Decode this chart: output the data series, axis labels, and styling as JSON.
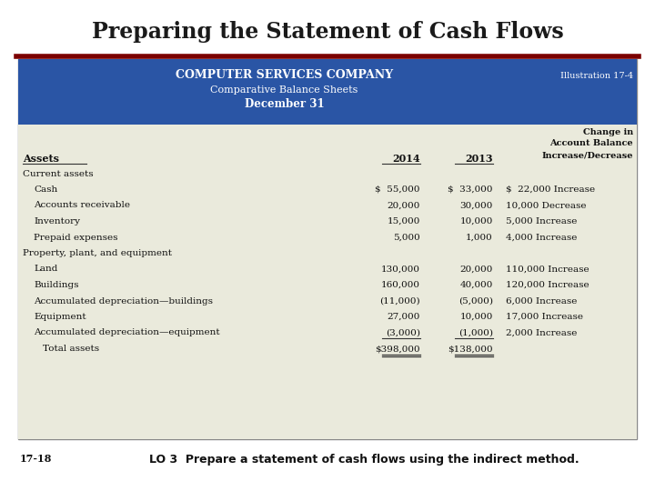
{
  "title": "Preparing the Statement of Cash Flows",
  "title_color": "#1a1a1a",
  "title_bg": "#ffffff",
  "divider_color": "#7b0000",
  "header_bg": "#2a55a5",
  "table_bg": "#eaeadc",
  "outer_border": "#aaaaaa",
  "company_name": "COMPUTER SERVICES COMPANY",
  "subtitle1": "Comparative Balance Sheets",
  "subtitle2": "December 31",
  "illustration": "Illustration 17-4",
  "rows": [
    {
      "label": "Current assets",
      "indent": 0,
      "val2014": "",
      "val2013": "",
      "change": "",
      "bold": false,
      "double_underline": false
    },
    {
      "label": "Cash",
      "indent": 1,
      "val2014": "$  55,000",
      "val2013": "$  33,000",
      "change": "$  22,000 Increase",
      "bold": false,
      "double_underline": false
    },
    {
      "label": "Accounts receivable",
      "indent": 1,
      "val2014": "20,000",
      "val2013": "30,000",
      "change": "10,000 Decrease",
      "bold": false,
      "double_underline": false
    },
    {
      "label": "Inventory",
      "indent": 1,
      "val2014": "15,000",
      "val2013": "10,000",
      "change": "5,000 Increase",
      "bold": false,
      "double_underline": false
    },
    {
      "label": "Prepaid expenses",
      "indent": 1,
      "val2014": "5,000",
      "val2013": "1,000",
      "change": "4,000 Increase",
      "bold": false,
      "double_underline": false
    },
    {
      "label": "Property, plant, and equipment",
      "indent": 0,
      "val2014": "",
      "val2013": "",
      "change": "",
      "bold": false,
      "double_underline": false
    },
    {
      "label": "Land",
      "indent": 1,
      "val2014": "130,000",
      "val2013": "20,000",
      "change": "110,000 Increase",
      "bold": false,
      "double_underline": false
    },
    {
      "label": "Buildings",
      "indent": 1,
      "val2014": "160,000",
      "val2013": "40,000",
      "change": "120,000 Increase",
      "bold": false,
      "double_underline": false
    },
    {
      "label": "Accumulated depreciation—buildings",
      "indent": 1,
      "val2014": "(11,000)",
      "val2013": "(5,000)",
      "change": "6,000 Increase",
      "bold": false,
      "double_underline": false
    },
    {
      "label": "Equipment",
      "indent": 1,
      "val2014": "27,000",
      "val2013": "10,000",
      "change": "17,000 Increase",
      "bold": false,
      "double_underline": false
    },
    {
      "label": "Accumulated depreciation—equipment",
      "indent": 1,
      "val2014": "(3,000)",
      "val2013": "(1,000)",
      "change": "2,000 Increase",
      "bold": false,
      "double_underline": false
    },
    {
      "label": "Total assets",
      "indent": 2,
      "val2014": "$398,000",
      "val2013": "$138,000",
      "change": "",
      "bold": false,
      "double_underline": true
    }
  ],
  "footer_left": "17-18",
  "footer_right": "LO 3  Prepare a statement of cash flows using the indirect method."
}
